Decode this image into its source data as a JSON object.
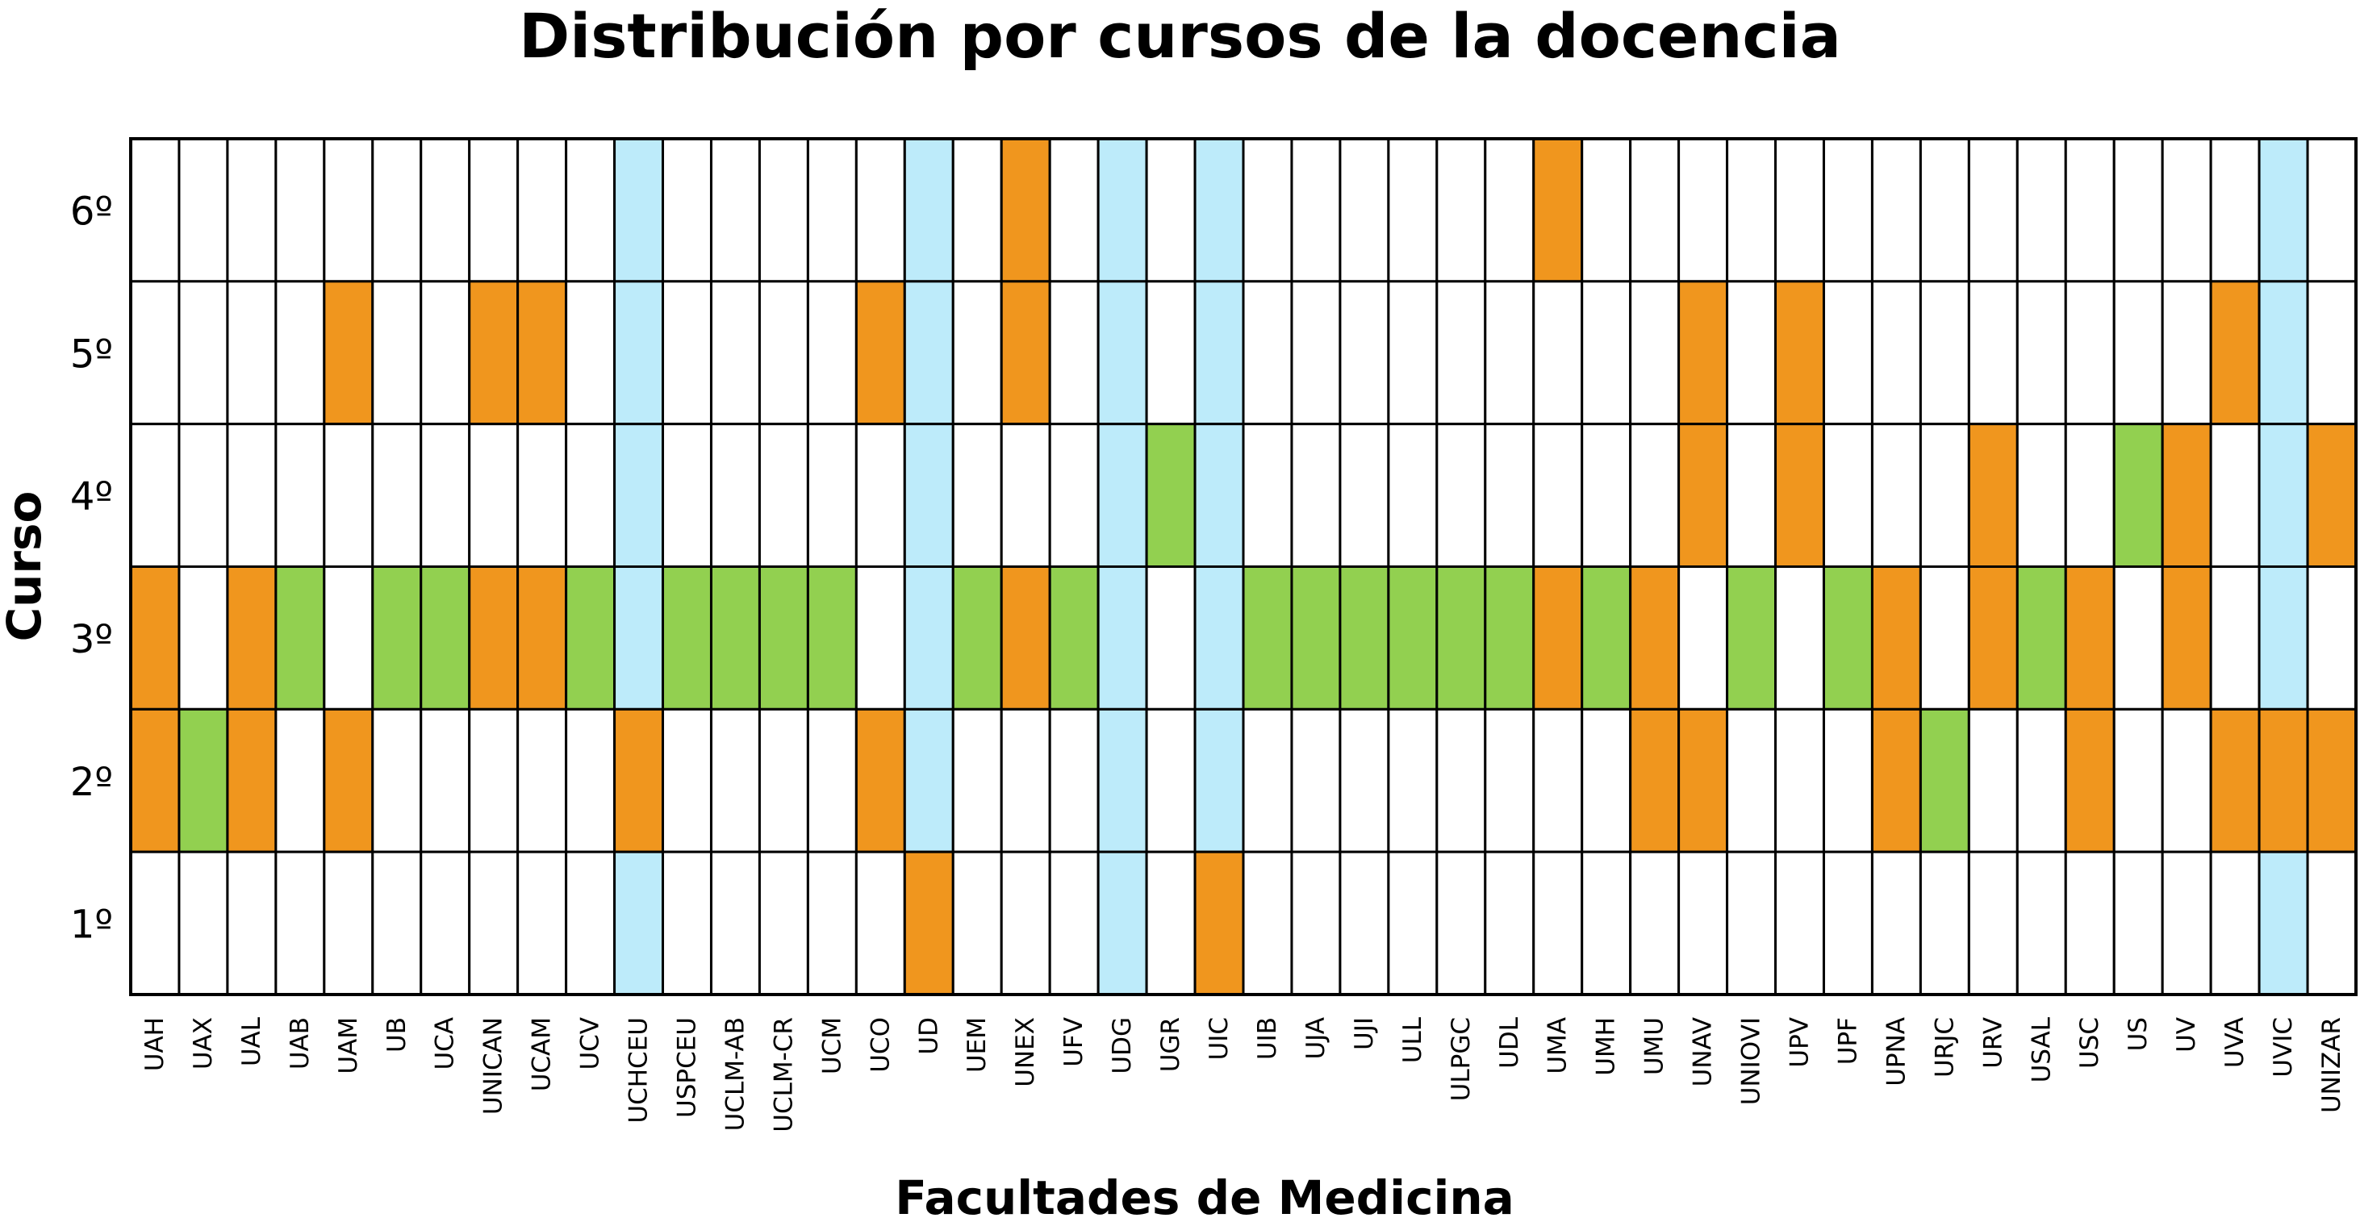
{
  "chart_data": {
    "type": "heatmap",
    "title": "Distribución por cursos de la docencia",
    "xlabel": "Facultades de Medicina",
    "ylabel": "Curso",
    "y_categories": [
      "6º",
      "5º",
      "4º",
      "3º",
      "2º",
      "1º"
    ],
    "x_categories": [
      "UAH",
      "UAX",
      "UAL",
      "UAB",
      "UAM",
      "UB",
      "UCA",
      "UNICAN",
      "UCAM",
      "UCV",
      "UCHCEU",
      "USPCEU",
      "UCLM-AB",
      "UCLM-CR",
      "UCM",
      "UCO",
      "UD",
      "UEM",
      "UNEX",
      "UFV",
      "UDG",
      "UGR",
      "UIC",
      "UIB",
      "UJA",
      "UJI",
      "ULL",
      "ULPGC",
      "UDL",
      "UMA",
      "UMH",
      "UMU",
      "UNAV",
      "UNIOVI",
      "UPV",
      "UPF",
      "UPNA",
      "URJC",
      "URV",
      "USAL",
      "USC",
      "US",
      "UV",
      "UVA",
      "UVIC",
      "UNIZAR"
    ],
    "colors": {
      "O": "#F0961E",
      "G": "#92D050",
      "B": "#BDEBFA",
      "W": "#FFFFFF"
    },
    "grid": [
      "WWWWWWWWWWBWWWWWBWOWBWBWWWWWWOWWWWWWWWWWWWWWBW",
      "WWWWOWWOOWBWWWWOBWOWBWBWWWWWWWWWOWOWWWWWWWWOBW",
      "WWWWWWWWWWBWWWWWBWWWBGBWWWWWWWWWOWOWWWOWWGOWBO",
      "OWOGWGGOOGBGGGGWBGOGBWBGGGGGGOGOWGWGOWOGOWOWBW",
      "OGOWOWWWWWOWWWWOBWWWBWBWWWWWWWWOOWWWOGWWOWWOOO",
      "WWWWWWWWWWBWWWWWOWWWBWOWWWWWWWWWWWWWWWWWWWWWBW"
    ]
  }
}
